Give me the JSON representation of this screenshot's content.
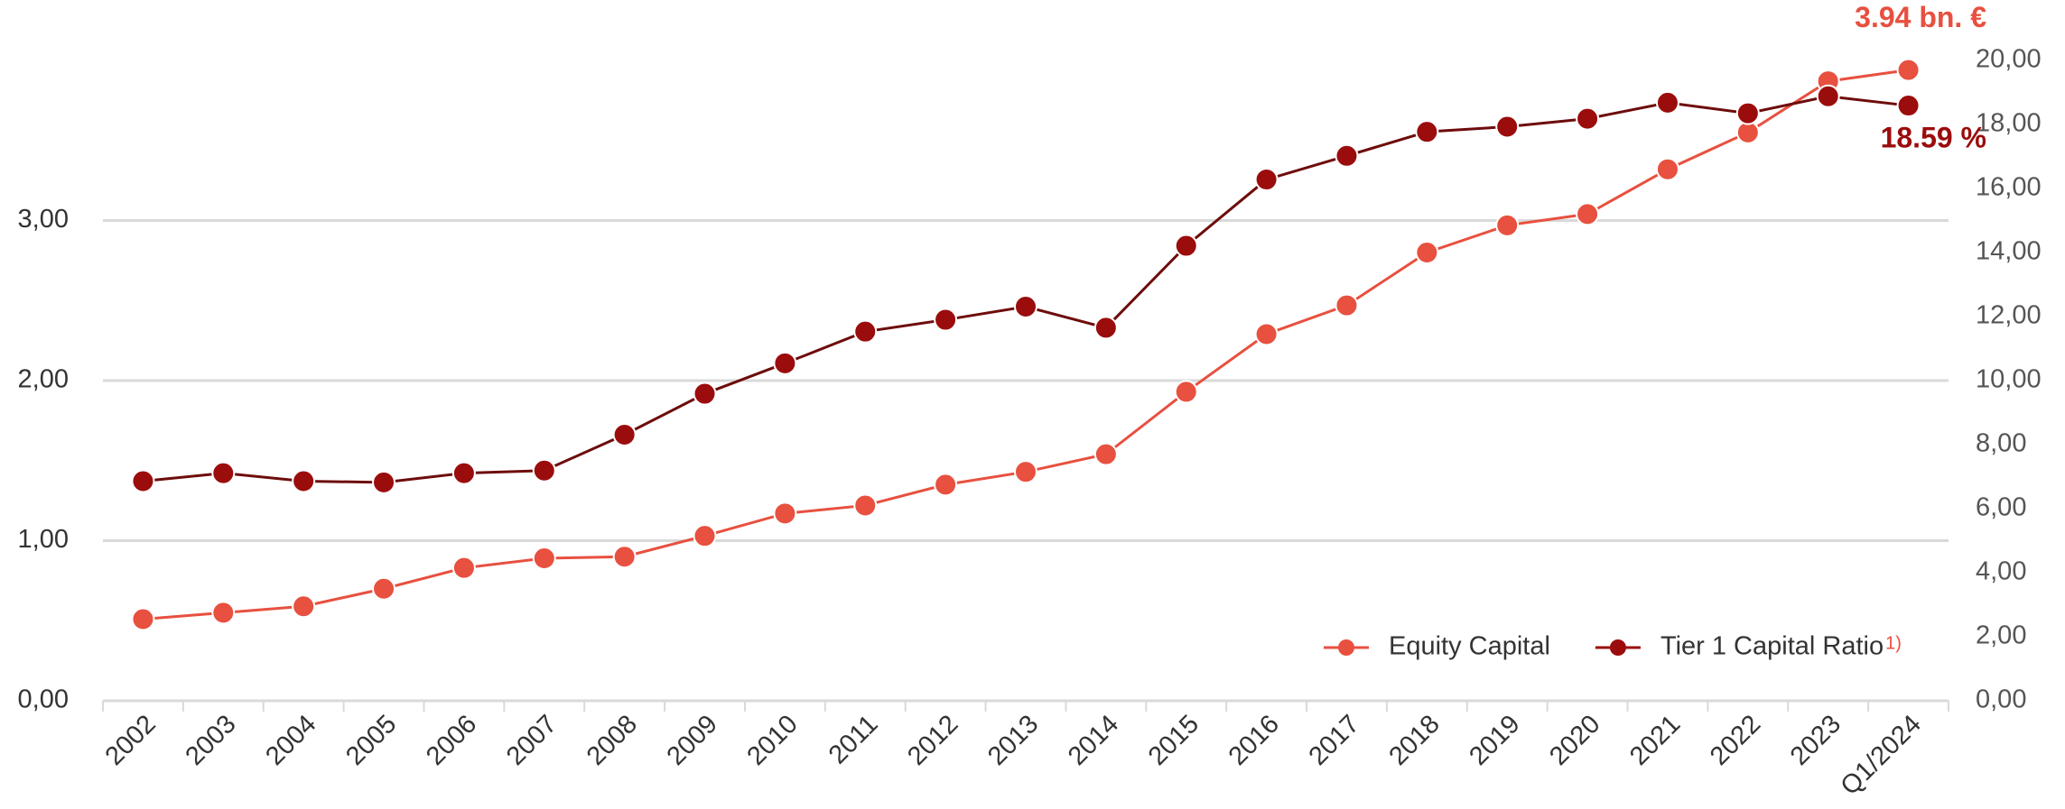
{
  "chart_data": {
    "type": "line",
    "categories": [
      "2002",
      "2003",
      "2004",
      "2005",
      "2006",
      "2007",
      "2008",
      "2009",
      "2010",
      "2011",
      "2012",
      "2013",
      "2014",
      "2015",
      "2016",
      "2017",
      "2018",
      "2019",
      "2020",
      "2021",
      "2022",
      "2023",
      "Q1/2024"
    ],
    "series": [
      {
        "name": "Equity Capital",
        "color": "#e8503f",
        "axis": "y",
        "values": [
          0.51,
          0.55,
          0.59,
          0.7,
          0.83,
          0.89,
          0.9,
          1.03,
          1.17,
          1.22,
          1.35,
          1.43,
          1.54,
          1.93,
          2.29,
          2.47,
          2.8,
          2.97,
          3.04,
          3.32,
          3.55,
          3.87,
          3.94
        ]
      },
      {
        "name": "Tier 1 Capital Ratio",
        "color": "#9b0c0c",
        "axis": "y2",
        "values": [
          6.86,
          7.11,
          6.86,
          6.82,
          7.11,
          7.19,
          8.31,
          9.59,
          10.54,
          11.53,
          11.9,
          12.31,
          11.65,
          14.21,
          16.28,
          17.02,
          17.77,
          17.93,
          18.18,
          18.68,
          18.35,
          18.88,
          18.59
        ]
      }
    ],
    "legend_footnote": "1)",
    "annotations": [
      {
        "text": "3.94 bn. €",
        "series": 0
      },
      {
        "text": "18.59 %",
        "series": 1
      }
    ],
    "ylim": [
      0,
      4
    ],
    "yticks": [
      {
        "value": 0,
        "label": "0,00"
      },
      {
        "value": 1,
        "label": "1,00"
      },
      {
        "value": 2,
        "label": "2,00"
      },
      {
        "value": 3,
        "label": "3,00"
      }
    ],
    "y2lim": [
      0,
      20
    ],
    "y2ticks": [
      {
        "value": 0,
        "label": "0,00"
      },
      {
        "value": 2,
        "label": "2,00"
      },
      {
        "value": 4,
        "label": "4,00"
      },
      {
        "value": 6,
        "label": "6,00"
      },
      {
        "value": 8,
        "label": "8,00"
      },
      {
        "value": 10,
        "label": "10,00"
      },
      {
        "value": 12,
        "label": "12,00"
      },
      {
        "value": 14,
        "label": "14,00"
      },
      {
        "value": 16,
        "label": "16,00"
      },
      {
        "value": 18,
        "label": "18,00"
      },
      {
        "value": 20,
        "label": "20,00"
      }
    ],
    "grid": true,
    "legend": "lower right"
  }
}
